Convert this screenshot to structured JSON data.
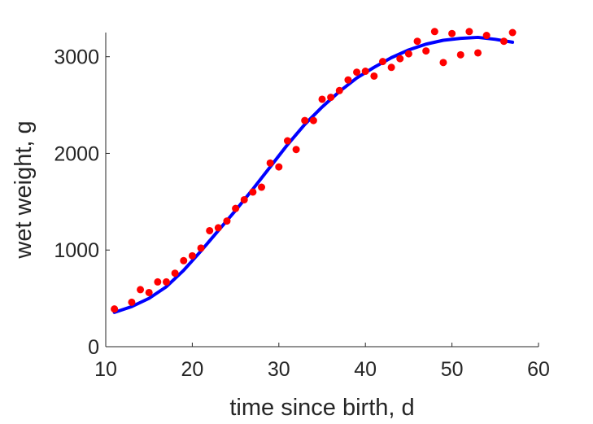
{
  "chart_data": {
    "type": "scatter",
    "title": "",
    "xlabel": "time since birth, d",
    "ylabel": "wet weight, g",
    "xlim": [
      10,
      60
    ],
    "ylim": [
      0,
      3250
    ],
    "xticks": [
      10,
      20,
      30,
      40,
      50,
      60
    ],
    "yticks": [
      0,
      1000,
      2000,
      3000
    ],
    "xtick_labels": [
      "10",
      "20",
      "30",
      "40",
      "50",
      "60"
    ],
    "ytick_labels": [
      "0",
      "1000",
      "2000",
      "3000"
    ],
    "grid": false,
    "series": [
      {
        "kind": "scatter",
        "color": "#ff0000",
        "x": [
          11,
          13,
          14,
          15,
          16,
          17,
          18,
          19,
          20,
          21,
          22,
          23,
          24,
          25,
          26,
          27,
          28,
          29,
          30,
          31,
          32,
          33,
          34,
          35,
          36,
          37,
          38,
          39,
          40,
          41,
          42,
          43,
          44,
          45,
          46,
          47,
          48,
          49,
          50,
          51,
          52,
          53,
          54,
          56,
          57
        ],
        "y": [
          390,
          460,
          590,
          560,
          670,
          670,
          760,
          890,
          940,
          1020,
          1200,
          1230,
          1300,
          1430,
          1520,
          1600,
          1650,
          1900,
          1860,
          2130,
          2040,
          2340,
          2340,
          2560,
          2580,
          2650,
          2760,
          2840,
          2850,
          2800,
          2950,
          2890,
          2980,
          3030,
          3160,
          3060,
          3260,
          2940,
          3240,
          3020,
          3260,
          3040,
          3220,
          3160,
          3250
        ]
      },
      {
        "kind": "line",
        "color": "#0000ff",
        "x": [
          11,
          13,
          15,
          17,
          19,
          21,
          23,
          25,
          27,
          29,
          31,
          33,
          35,
          37,
          39,
          41,
          43,
          45,
          47,
          49,
          51,
          53,
          55,
          57
        ],
        "y": [
          355,
          415,
          500,
          620,
          790,
          990,
          1200,
          1410,
          1630,
          1860,
          2090,
          2300,
          2480,
          2640,
          2780,
          2890,
          2990,
          3070,
          3130,
          3170,
          3190,
          3200,
          3180,
          3150
        ]
      }
    ]
  }
}
